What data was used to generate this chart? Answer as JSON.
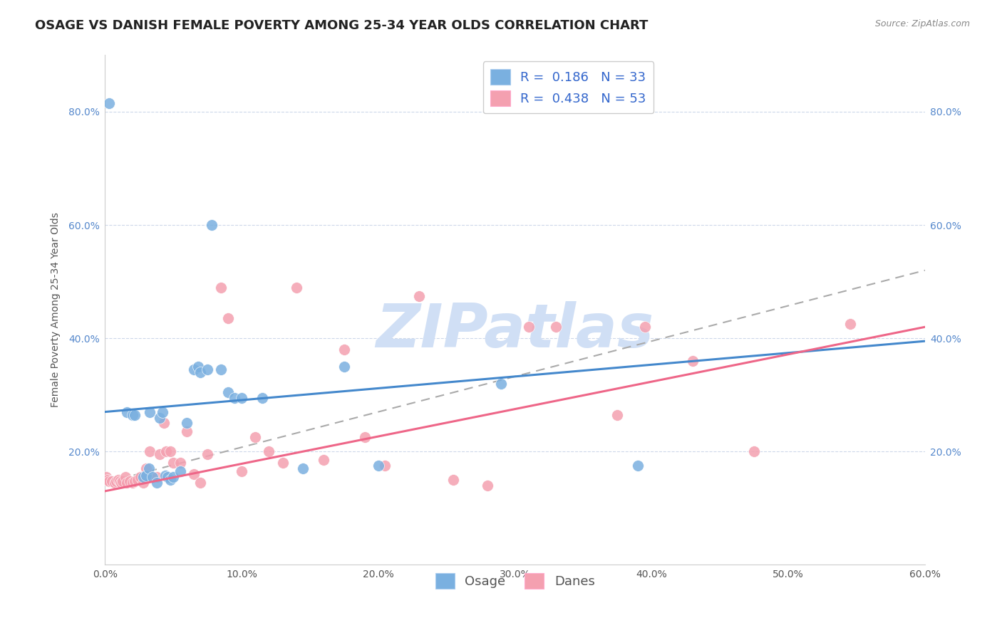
{
  "title": "OSAGE VS DANISH FEMALE POVERTY AMONG 25-34 YEAR OLDS CORRELATION CHART",
  "source": "Source: ZipAtlas.com",
  "ylabel": "Female Poverty Among 25-34 Year Olds",
  "xlim": [
    0.0,
    0.6
  ],
  "ylim": [
    0.0,
    0.9
  ],
  "xticks": [
    0.0,
    0.1,
    0.2,
    0.3,
    0.4,
    0.5,
    0.6
  ],
  "yticks": [
    0.2,
    0.4,
    0.6,
    0.8
  ],
  "osage_color": "#7ab0e0",
  "danes_color": "#f4a0b0",
  "osage_line_color": "#4488cc",
  "danes_line_color": "#ee6688",
  "osage_R": 0.186,
  "osage_N": 33,
  "danes_R": 0.438,
  "danes_N": 53,
  "legend_label_osage": "Osage",
  "legend_label_danes": "Danes",
  "osage_x": [
    0.003,
    0.016,
    0.02,
    0.022,
    0.028,
    0.03,
    0.032,
    0.033,
    0.035,
    0.038,
    0.04,
    0.042,
    0.044,
    0.046,
    0.048,
    0.05,
    0.055,
    0.06,
    0.065,
    0.068,
    0.07,
    0.075,
    0.078,
    0.085,
    0.09,
    0.095,
    0.1,
    0.115,
    0.145,
    0.175,
    0.2,
    0.29,
    0.39
  ],
  "osage_y": [
    0.815,
    0.27,
    0.265,
    0.265,
    0.155,
    0.158,
    0.17,
    0.27,
    0.155,
    0.145,
    0.26,
    0.27,
    0.158,
    0.155,
    0.15,
    0.155,
    0.165,
    0.25,
    0.345,
    0.35,
    0.34,
    0.345,
    0.6,
    0.345,
    0.305,
    0.295,
    0.295,
    0.295,
    0.17,
    0.35,
    0.175,
    0.32,
    0.175
  ],
  "danes_x": [
    0.001,
    0.002,
    0.003,
    0.005,
    0.007,
    0.008,
    0.01,
    0.011,
    0.012,
    0.013,
    0.015,
    0.016,
    0.018,
    0.02,
    0.022,
    0.024,
    0.026,
    0.028,
    0.03,
    0.033,
    0.035,
    0.038,
    0.04,
    0.043,
    0.045,
    0.048,
    0.05,
    0.055,
    0.06,
    0.065,
    0.07,
    0.075,
    0.085,
    0.09,
    0.1,
    0.11,
    0.12,
    0.13,
    0.14,
    0.16,
    0.175,
    0.19,
    0.205,
    0.23,
    0.255,
    0.28,
    0.31,
    0.33,
    0.375,
    0.395,
    0.43,
    0.475,
    0.545
  ],
  "danes_y": [
    0.155,
    0.15,
    0.147,
    0.148,
    0.145,
    0.148,
    0.15,
    0.148,
    0.145,
    0.148,
    0.155,
    0.145,
    0.148,
    0.145,
    0.148,
    0.15,
    0.155,
    0.145,
    0.17,
    0.2,
    0.155,
    0.155,
    0.195,
    0.25,
    0.2,
    0.2,
    0.18,
    0.18,
    0.235,
    0.16,
    0.145,
    0.195,
    0.49,
    0.435,
    0.165,
    0.225,
    0.2,
    0.18,
    0.49,
    0.185,
    0.38,
    0.225,
    0.175,
    0.475,
    0.15,
    0.14,
    0.42,
    0.42,
    0.265,
    0.42,
    0.36,
    0.2,
    0.425
  ],
  "background_color": "#ffffff",
  "grid_color": "#c8d4e8",
  "watermark_text": "ZIPatlas",
  "watermark_color": "#d0dff5",
  "title_fontsize": 13,
  "axis_label_fontsize": 10,
  "tick_fontsize": 10,
  "legend_fontsize": 12,
  "source_fontsize": 9,
  "osage_line_start_x": 0.0,
  "osage_line_end_x": 0.6,
  "danes_line_start_x": 0.0,
  "danes_line_end_x": 0.6,
  "dash_line_start_x": 0.0,
  "dash_line_end_x": 0.6,
  "osage_line_start_y": 0.27,
  "osage_line_end_y": 0.395,
  "danes_line_start_y": 0.13,
  "danes_line_end_y": 0.42,
  "dash_line_start_y": 0.145,
  "dash_line_end_y": 0.52
}
